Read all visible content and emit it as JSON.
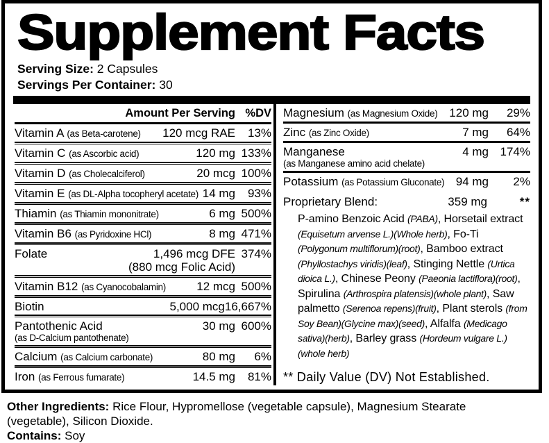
{
  "title": "Supplement Facts",
  "serving": {
    "size_label": "Serving Size:",
    "size_value": "2 Capsules",
    "container_label": "Servings Per Container:",
    "container_value": "30"
  },
  "table": {
    "header": {
      "amount": "Amount Per Serving",
      "dv": "%DV"
    },
    "left_rows": [
      {
        "name": "Vitamin A",
        "form": "(as Beta-carotene)",
        "amount": "120 mcg RAE",
        "dv": "13%"
      },
      {
        "name": "Vitamin C",
        "form": "(as Ascorbic acid)",
        "amount": "120 mg",
        "dv": "133%"
      },
      {
        "name": "Vitamin D",
        "form": "(as Cholecalciferol)",
        "amount": "20 mcg",
        "dv": "100%"
      },
      {
        "name": "Vitamin E",
        "form": "(as DL-Alpha tocopheryl acetate)",
        "amount": "14 mg",
        "dv": "93%"
      },
      {
        "name": "Thiamin",
        "form": "(as Thiamin mononitrate)",
        "amount": "6 mg",
        "dv": "500%"
      },
      {
        "name": "Vitamin B6",
        "form": "(as Pyridoxine HCl)",
        "amount": "8 mg",
        "dv": "471%"
      },
      {
        "name": "Folate",
        "form": "",
        "amount": "1,496 mcg DFE",
        "amount2": "(880 mcg Folic Acid)",
        "dv": "374%"
      },
      {
        "name": "Vitamin B12",
        "form": "(as Cyanocobalamin)",
        "amount": "12 mcg",
        "dv": "500%"
      },
      {
        "name": "Biotin",
        "form": "",
        "amount": "5,000 mcg",
        "dv": "16,667%"
      },
      {
        "name": "Pantothenic Acid",
        "form": "(as D-Calcium pantothenate)",
        "amount": "30 mg",
        "dv": "600%"
      },
      {
        "name": "Calcium",
        "form": "(as Calcium carbonate)",
        "amount": "80 mg",
        "dv": "6%"
      },
      {
        "name": "Iron",
        "form": "(as Ferrous fumarate)",
        "amount": "14.5 mg",
        "dv": "81%"
      }
    ],
    "right_rows": [
      {
        "name": "Magnesium",
        "form": "(as Magnesium Oxide)",
        "amount": "120 mg",
        "dv": "29%"
      },
      {
        "name": "Zinc",
        "form": "(as Zinc Oxide)",
        "amount": "7 mg",
        "dv": "64%"
      },
      {
        "name": "Manganese",
        "form": "(as Manganese amino acid chelate)",
        "amount": "4 mg",
        "dv": "174%"
      },
      {
        "name": "Potassium",
        "form": "(as Potassium Gluconate)",
        "amount": "94 mg",
        "dv": "2%"
      }
    ]
  },
  "blend": {
    "label": "Proprietary Blend:",
    "amount": "359 mg",
    "dv": "**",
    "description": [
      {
        "t": "P-amino Benzoic Acid ",
        "i": false
      },
      {
        "t": "(PABA)",
        "i": true
      },
      {
        "t": ", Horsetail extract ",
        "i": false
      },
      {
        "t": "(Equisetum arvense L.)(Whole herb)",
        "i": true
      },
      {
        "t": ", Fo-Ti ",
        "i": false
      },
      {
        "t": "(Polygonum multiflorum)(root)",
        "i": true
      },
      {
        "t": ", Bamboo extract ",
        "i": false
      },
      {
        "t": "(Phyllostachys viridis)(leaf)",
        "i": true
      },
      {
        "t": ", Stinging Nettle ",
        "i": false
      },
      {
        "t": "(Urtica dioica L.)",
        "i": true
      },
      {
        "t": ", Chinese Peony ",
        "i": false
      },
      {
        "t": "(Paeonia lactiflora)(root)",
        "i": true
      },
      {
        "t": ", Spirulina ",
        "i": false
      },
      {
        "t": "(Arthrospira platensis)(whole plant)",
        "i": true
      },
      {
        "t": ", Saw palmetto ",
        "i": false
      },
      {
        "t": "(Serenoa repens)(fruit)",
        "i": true
      },
      {
        "t": ", Plant sterols ",
        "i": false
      },
      {
        "t": "(from Soy Bean)(Glycine max)(seed)",
        "i": true
      },
      {
        "t": ", Alfalfa ",
        "i": false
      },
      {
        "t": "(Medicago sativa)(herb)",
        "i": true
      },
      {
        "t": ", Barley grass ",
        "i": false
      },
      {
        "t": "(Hordeum vulgare L.)(whole herb)",
        "i": true
      }
    ]
  },
  "footnote": "** Daily Value (DV) Not Established.",
  "footer": {
    "other_label": "Other Ingredients:",
    "other_value": " Rice Flour, Hypromellose (vegetable capsule), Magnesium Stearate (vegetable), Silicon Dioxide.",
    "contains_label": "Contains:",
    "contains_value": " Soy"
  },
  "colors": {
    "ink": "#000000",
    "paper": "#ffffff"
  }
}
